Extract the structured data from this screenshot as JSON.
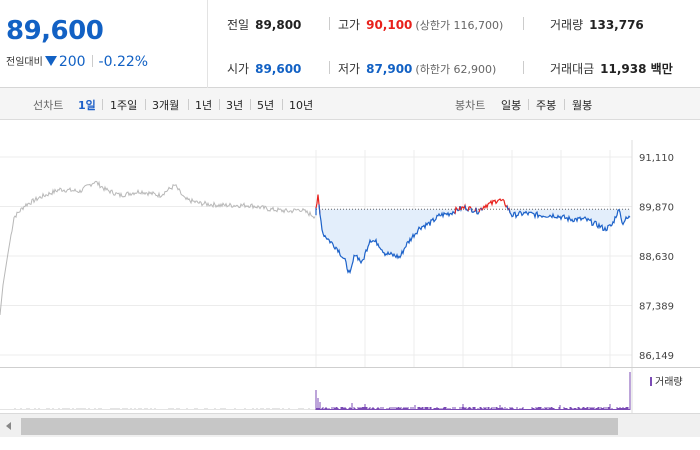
{
  "quote": {
    "current_price": "89,600",
    "change_label": "전일대비",
    "change_direction": "down",
    "change_amount": "200",
    "change_rate": "-0.22%",
    "stats": [
      {
        "label": "전일",
        "value": "89,800",
        "color": "#222222"
      },
      {
        "label": "고가",
        "value": "90,100",
        "sub": "(상한가 116,700)",
        "color": "#e8211c"
      },
      {
        "label": "거래량",
        "value": "133,776",
        "color": "#222222"
      },
      {
        "label": "시가",
        "value": "89,600",
        "color": "#1261c4"
      },
      {
        "label": "저가",
        "value": "87,900",
        "sub": "(하한가 62,900)",
        "color": "#1261c4"
      },
      {
        "label": "거래대금",
        "value": "11,938 백만",
        "color": "#222222"
      }
    ]
  },
  "toolbar": {
    "line_chart_label": "선차트",
    "periods": [
      "1일",
      "1주일",
      "3개월",
      "1년",
      "3년",
      "5년",
      "10년"
    ],
    "selected_period": "1일",
    "candle_chart_label": "봉차트",
    "candles": [
      "일봉",
      "주봉",
      "월봉"
    ]
  },
  "chart": {
    "y_ticks": [
      "91,110",
      "89,870",
      "88,630",
      "87,389",
      "86,149"
    ],
    "y_range": [
      86149,
      91110
    ],
    "previous_close": 89800,
    "colors": {
      "today_line": "#1d62c9",
      "today_fill": "#e3eefb",
      "above_close": "#e8211c",
      "prev_day_line": "#b8b8b8",
      "volume_bar": "#7b4bb5"
    },
    "volume_legend": "거래량"
  }
}
